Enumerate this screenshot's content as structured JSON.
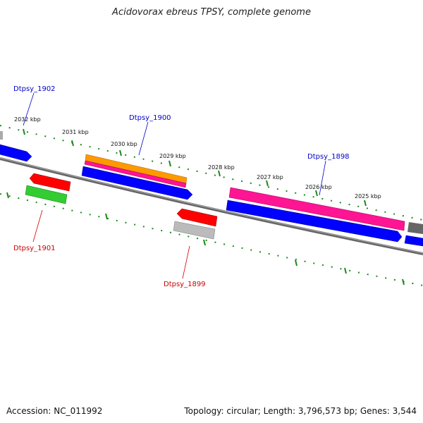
{
  "title": "Acidovorax ebreus TPSY, complete genome",
  "footer": {
    "accession": "Accession: NC_011992",
    "topology": "Topology: circular; Length: 3,796,573 bp; Genes: 3,544"
  },
  "ticks": [
    "2032 kbp",
    "2031 kbp",
    "2030 kbp",
    "2029 kbp",
    "2028 kbp",
    "2027 kbp",
    "2026 kbp",
    "2025 kbp"
  ],
  "genes": [
    {
      "id": "Dtpsy_1902",
      "strand": "forward",
      "color": "#0000cc"
    },
    {
      "id": "Dtpsy_1900",
      "strand": "forward",
      "color": "#0000cc"
    },
    {
      "id": "Dtpsy_1898",
      "strand": "forward",
      "color": "#0000cc"
    },
    {
      "id": "Dtpsy_1901",
      "strand": "reverse",
      "color": "#cc0000"
    },
    {
      "id": "Dtpsy_1899",
      "strand": "reverse",
      "color": "#cc0000"
    }
  ],
  "colors": {
    "forward_label": "#0000cc",
    "reverse_label": "#cc0000",
    "tick": "#1a8a1a",
    "backbone": "#777777",
    "cds_forward": "#0000ff",
    "cds_reverse": "#ff0000",
    "gene_pink": "#ff1493",
    "gene_orange": "#ff9900",
    "gene_green": "#33cc33",
    "gene_gray": "#aaaaaa"
  }
}
